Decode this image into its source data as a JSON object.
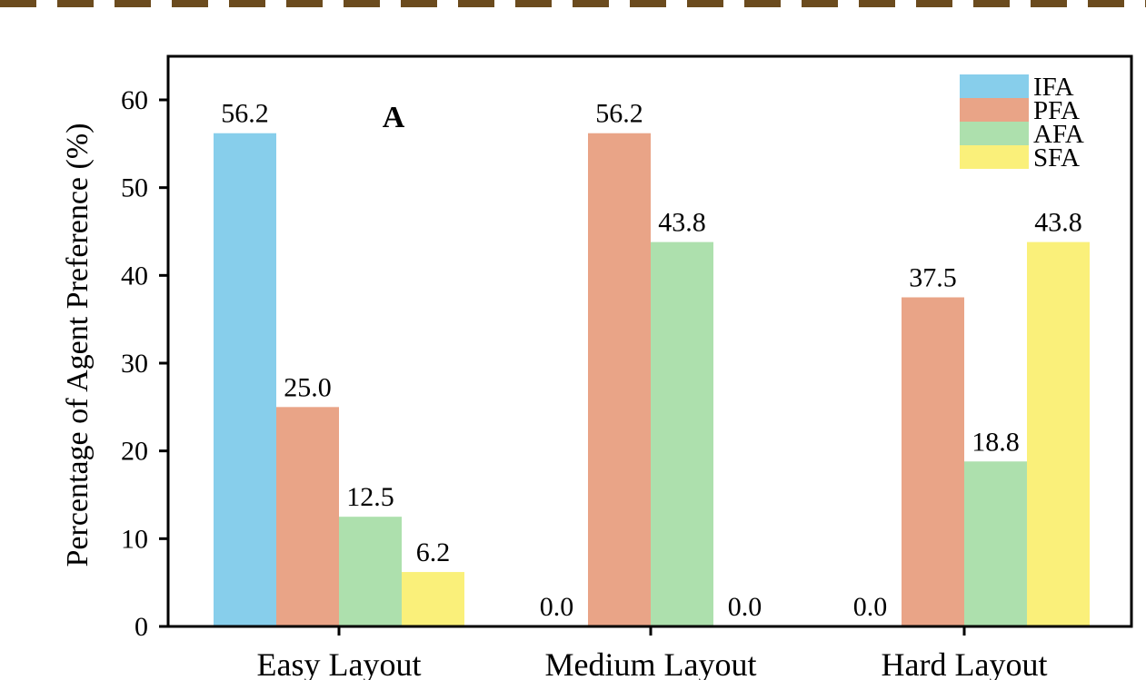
{
  "chart_data": {
    "type": "bar",
    "categories": [
      "Easy Layout",
      "Medium Layout",
      "Hard Layout"
    ],
    "series": [
      {
        "name": "IFA",
        "color": "#87CEEB",
        "values": [
          56.2,
          0.0,
          0.0
        ]
      },
      {
        "name": "PFA",
        "color": "#E9A487",
        "values": [
          25.0,
          56.2,
          37.5
        ]
      },
      {
        "name": "AFA",
        "color": "#ADE0AD",
        "values": [
          12.5,
          43.8,
          18.8
        ]
      },
      {
        "name": "SFA",
        "color": "#FAF07A",
        "values": [
          6.2,
          0.0,
          43.8
        ]
      }
    ],
    "data_labels": [
      [
        "56.2",
        "25.0",
        "12.5",
        "6.2"
      ],
      [
        "0.0",
        "56.2",
        "43.8",
        "0.0"
      ],
      [
        "0.0",
        "37.5",
        "18.8",
        "43.8"
      ]
    ],
    "title": "",
    "annotation": "A",
    "xlabel": "",
    "ylabel": "Percentage of Agent Preference (%)",
    "ylim": [
      0,
      60
    ],
    "yticks": [
      0,
      10,
      20,
      30,
      40,
      50,
      60
    ],
    "grid": false,
    "legend_position": "top-right",
    "frame_border_color": "#6B4B1E"
  }
}
